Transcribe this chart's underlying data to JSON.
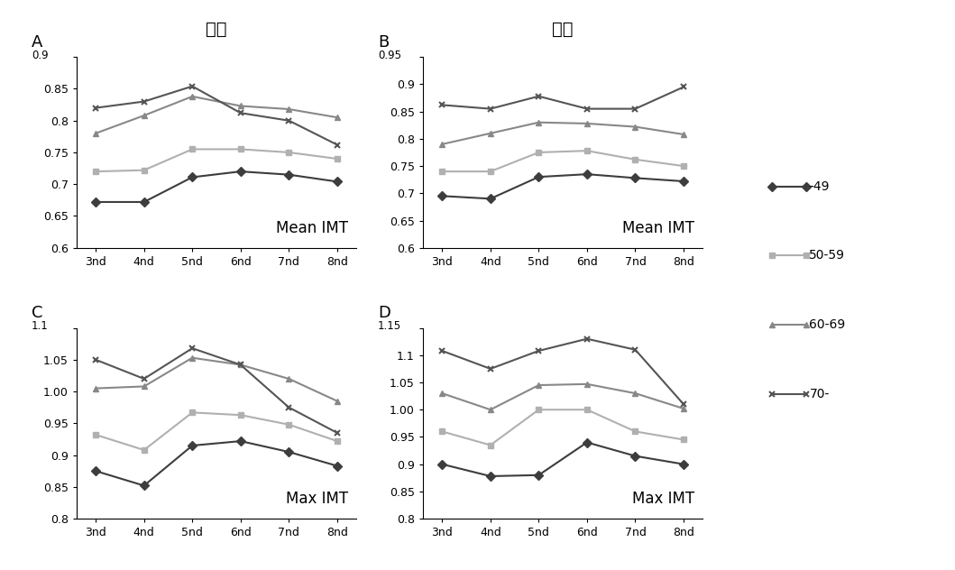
{
  "x_labels": [
    "3nd",
    "4nd",
    "5nd",
    "6nd",
    "7nd",
    "8nd"
  ],
  "x_vals": [
    0,
    1,
    2,
    3,
    4,
    5
  ],
  "A_mean_imt": {
    "age49": [
      0.672,
      0.672,
      0.711,
      0.72,
      0.715,
      0.704
    ],
    "age50_59": [
      0.72,
      0.722,
      0.755,
      0.755,
      0.75,
      0.74
    ],
    "age60_69": [
      0.78,
      0.808,
      0.838,
      0.823,
      0.818,
      0.805
    ],
    "age70": [
      0.82,
      0.83,
      0.854,
      0.812,
      0.8,
      0.762
    ],
    "ylim": [
      0.6,
      0.9
    ],
    "yticks": [
      0.6,
      0.65,
      0.7,
      0.75,
      0.8,
      0.85,
      0.9
    ],
    "panel_letter": "A",
    "top_label": "0.9",
    "label": "Mean IMT"
  },
  "B_mean_imt": {
    "age49": [
      0.695,
      0.69,
      0.73,
      0.735,
      0.728,
      0.722
    ],
    "age50_59": [
      0.74,
      0.74,
      0.775,
      0.778,
      0.762,
      0.75
    ],
    "age60_69": [
      0.79,
      0.81,
      0.83,
      0.828,
      0.822,
      0.808
    ],
    "age70": [
      0.862,
      0.855,
      0.878,
      0.855,
      0.855,
      0.895
    ],
    "ylim": [
      0.6,
      0.95
    ],
    "yticks": [
      0.6,
      0.65,
      0.7,
      0.75,
      0.8,
      0.85,
      0.9,
      0.95
    ],
    "panel_letter": "B",
    "top_label": "0.95",
    "label": "Mean IMT"
  },
  "C_max_imt": {
    "age49": [
      0.875,
      0.852,
      0.915,
      0.922,
      0.905,
      0.883
    ],
    "age50_59": [
      0.932,
      0.908,
      0.967,
      0.963,
      0.948,
      0.922
    ],
    "age60_69": [
      1.005,
      1.008,
      1.053,
      1.042,
      1.02,
      0.985
    ],
    "age70": [
      1.05,
      1.02,
      1.068,
      1.042,
      0.975,
      0.935
    ],
    "ylim": [
      0.8,
      1.1
    ],
    "yticks": [
      0.8,
      0.85,
      0.9,
      0.95,
      1.0,
      1.05,
      1.1
    ],
    "panel_letter": "C",
    "top_label": "1.1",
    "label": "Max IMT"
  },
  "D_max_imt": {
    "age49": [
      0.9,
      0.878,
      0.88,
      0.94,
      0.915,
      0.9
    ],
    "age50_59": [
      0.96,
      0.935,
      1.0,
      1.0,
      0.96,
      0.945
    ],
    "age60_69": [
      1.03,
      1.0,
      1.045,
      1.047,
      1.03,
      1.002
    ],
    "age70": [
      1.108,
      1.075,
      1.108,
      1.13,
      1.11,
      1.01
    ],
    "ylim": [
      0.8,
      1.15
    ],
    "yticks": [
      0.8,
      0.85,
      0.9,
      0.95,
      1.0,
      1.05,
      1.1,
      1.15
    ],
    "panel_letter": "D",
    "top_label": "1.15",
    "label": "Max IMT"
  },
  "colors": {
    "age49": "#3d3d3d",
    "age50_59": "#b0b0b0",
    "age60_69": "#888888",
    "age70": "#555555"
  },
  "markers": {
    "age49": "D",
    "age50_59": "s",
    "age60_69": "^",
    "age70": "x"
  },
  "legend_labels": [
    "-49",
    "50-59",
    "60-69",
    "70-"
  ],
  "col_titles": [
    "여성",
    "남성"
  ],
  "linewidth": 1.5,
  "markersize": 5
}
